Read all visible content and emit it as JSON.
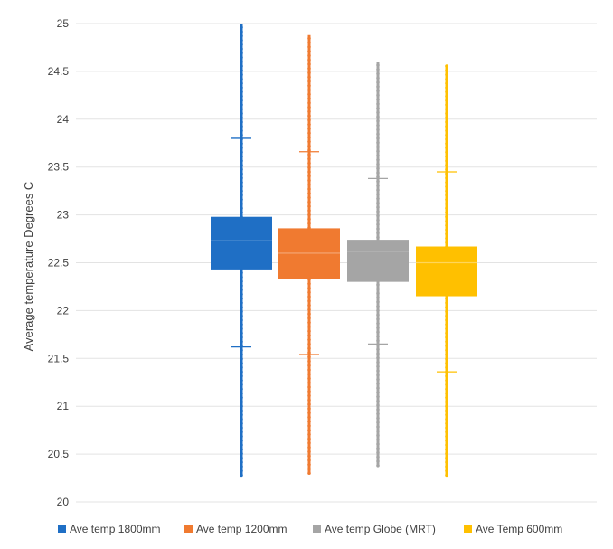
{
  "chart_data": {
    "type": "box",
    "title": "",
    "xlabel": "",
    "ylabel": "Average temperature Degrees C",
    "ylim": [
      20,
      25
    ],
    "yticks": [
      "20",
      "20.5",
      "21",
      "21.5",
      "22",
      "22.5",
      "23",
      "23.5",
      "24",
      "24.5",
      "25"
    ],
    "grid": true,
    "legend_position": "bottom",
    "series": [
      {
        "name": "Ave temp 1800mm",
        "color": "#1f6fc5",
        "min": 20.28,
        "whisker_low": 21.62,
        "q1": 22.43,
        "median": 22.73,
        "q3": 22.98,
        "whisker_high": 23.8,
        "max": 25.0
      },
      {
        "name": "Ave temp 1200mm",
        "color": "#f07a30",
        "min": 20.3,
        "whisker_low": 21.54,
        "q1": 22.33,
        "median": 22.6,
        "q3": 22.86,
        "whisker_high": 23.66,
        "max": 24.88
      },
      {
        "name": "Ave temp Globe (MRT)",
        "color": "#a5a5a5",
        "min": 20.38,
        "whisker_low": 21.65,
        "q1": 22.3,
        "median": 22.62,
        "q3": 22.74,
        "whisker_high": 23.38,
        "max": 24.6
      },
      {
        "name": "Ave Temp 600mm",
        "color": "#ffc000",
        "min": 20.28,
        "whisker_low": 21.36,
        "q1": 22.15,
        "median": 22.5,
        "q3": 22.67,
        "whisker_high": 23.45,
        "max": 24.56
      }
    ]
  }
}
